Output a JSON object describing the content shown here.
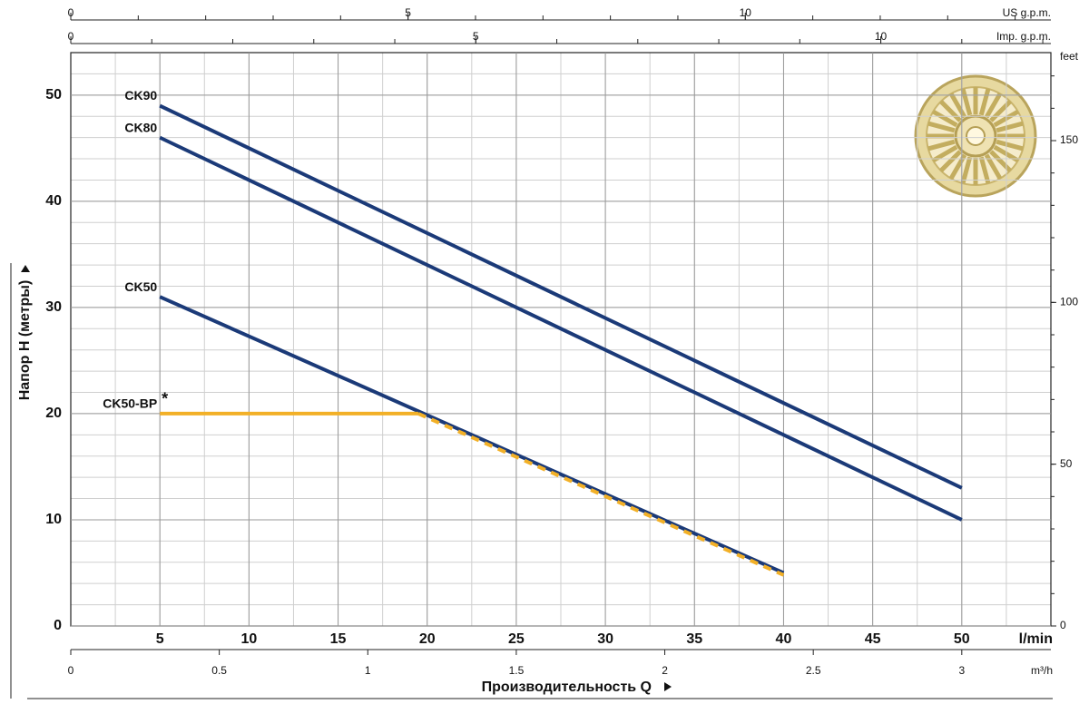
{
  "chart_data": {
    "type": "line",
    "y_label": "Напор H (метры)",
    "x_label": "Производительность Q",
    "x_unit": "l/min",
    "y2_label": "feet",
    "xlim": [
      0,
      55
    ],
    "ylim": [
      0,
      54
    ],
    "y2lim": [
      0,
      177.2
    ],
    "xticks": [
      5,
      10,
      15,
      20,
      25,
      30,
      35,
      40,
      45,
      50
    ],
    "yticks": [
      0,
      10,
      20,
      30,
      40,
      50
    ],
    "y2ticks": [
      0,
      50,
      100,
      150
    ],
    "grid": true,
    "grid_minor_x": 2.5,
    "grid_minor_y": 2,
    "top_axes": [
      {
        "label": "US g.p.m.",
        "lim": [
          0,
          14.53
        ],
        "ticks": [
          0,
          5,
          10
        ],
        "minor_step": 1
      },
      {
        "label": "Imp. g.p.m.",
        "lim": [
          0,
          12.1
        ],
        "ticks": [
          0,
          5,
          10
        ],
        "minor_step": 1
      }
    ],
    "bottom_axis": {
      "label": "m³/h",
      "lim": [
        0,
        3.3
      ],
      "ticks": [
        0,
        0.5,
        1,
        1.5,
        2,
        2.5,
        3
      ]
    },
    "series": [
      {
        "name": "CK90",
        "color": "#1b3a78",
        "x": [
          5,
          50
        ],
        "values": [
          49,
          13
        ]
      },
      {
        "name": "CK80",
        "color": "#1b3a78",
        "x": [
          5,
          50
        ],
        "values": [
          46,
          10
        ]
      },
      {
        "name": "CK50",
        "color": "#1b3a78",
        "x": [
          5,
          40
        ],
        "values": [
          31,
          5
        ]
      },
      {
        "name": "CK50-BP",
        "color": "#f2b027",
        "x": [
          5,
          19.5,
          40
        ],
        "values": [
          20,
          20,
          4.8
        ]
      }
    ],
    "note": "*"
  }
}
